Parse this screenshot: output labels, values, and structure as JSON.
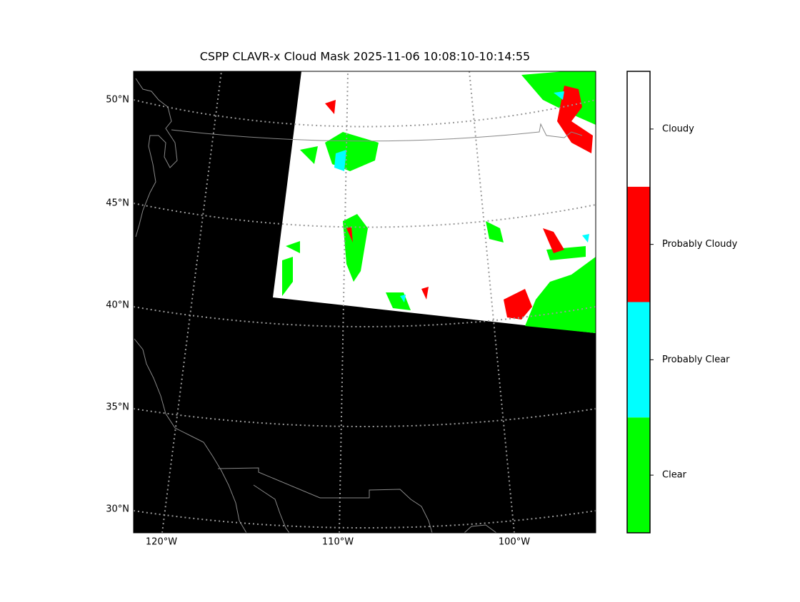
{
  "title": "CSPP CLAVR-x Cloud Mask 2025-11-06 10:08:10-10:14:55",
  "latitude_labels": [
    "50°N",
    "45°N",
    "40°N",
    "35°N",
    "30°N"
  ],
  "longitude_labels": [
    "120°W",
    "110°W",
    "100°W"
  ],
  "colorbar": {
    "classes": [
      {
        "label": "Clear",
        "color": "#00ff00"
      },
      {
        "label": "Probably Clear",
        "color": "#00ffff"
      },
      {
        "label": "Probably Cloudy",
        "color": "#ff0000"
      },
      {
        "label": "Cloudy",
        "color": "#ffffff"
      }
    ]
  }
}
